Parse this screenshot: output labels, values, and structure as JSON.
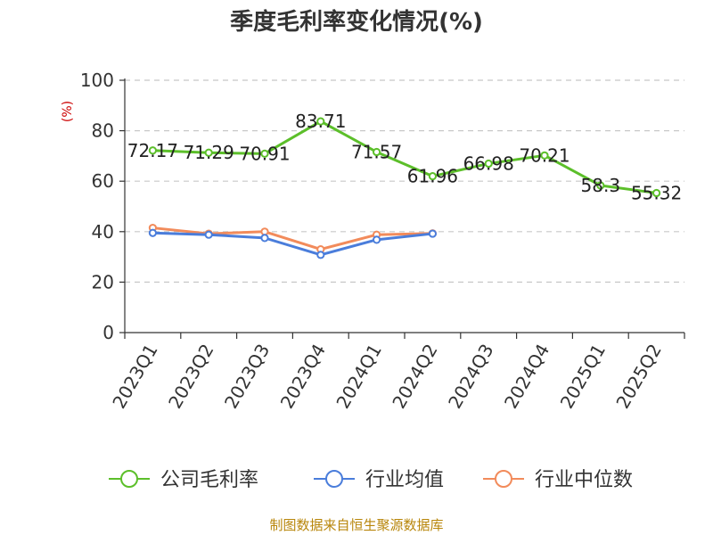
{
  "chart_data": {
    "type": "line",
    "title": "季度毛利率变化情况(%)",
    "ylabel": "(%)",
    "ylim": [
      0,
      100
    ],
    "yticks": [
      0,
      20,
      40,
      60,
      80,
      100
    ],
    "grid": true,
    "legend_position": "bottom",
    "categories": [
      "2023Q1",
      "2023Q2",
      "2023Q3",
      "2023Q4",
      "2024Q1",
      "2024Q2",
      "2024Q3",
      "2024Q4",
      "2025Q1",
      "2025Q2"
    ],
    "series": [
      {
        "name": "公司毛利率",
        "color": "#5cbf2a",
        "values": [
          72.17,
          71.29,
          70.91,
          83.71,
          71.57,
          61.96,
          66.98,
          70.21,
          58.3,
          55.32
        ],
        "labels": [
          "72.17",
          "71.29",
          "70.91",
          "83.71",
          "71.57",
          "61.96",
          "66.98",
          "70.21",
          "58.3",
          "55.32"
        ]
      },
      {
        "name": "行业均值",
        "color": "#4a7ddb",
        "values": [
          39.5,
          38.8,
          37.5,
          30.8,
          36.8,
          39.2,
          null,
          null,
          null,
          null
        ]
      },
      {
        "name": "行业中位数",
        "color": "#f28b5b",
        "values": [
          41.5,
          39.2,
          40.0,
          33.0,
          38.8,
          39.3,
          null,
          null,
          null,
          null
        ]
      }
    ]
  },
  "source": "制图数据来自恒生聚源数据库"
}
